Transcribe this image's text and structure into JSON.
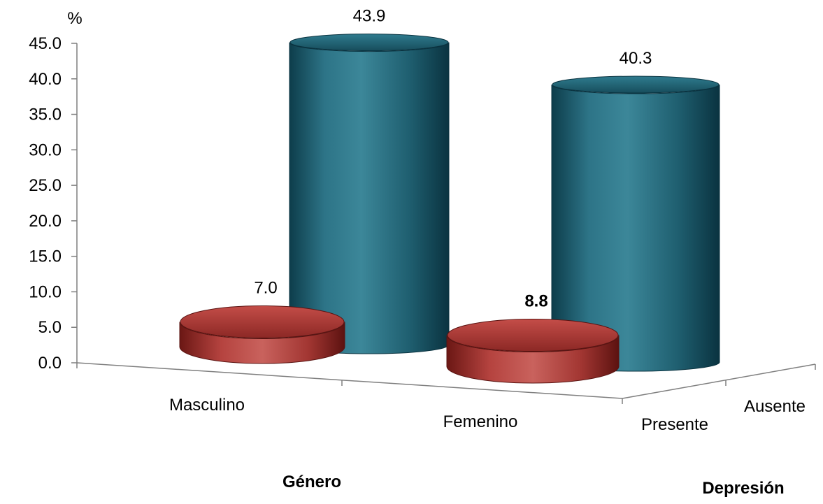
{
  "chart_data": {
    "type": "bar",
    "title": "",
    "ylabel": "%",
    "xlabel": "Género",
    "zlabel": "Depresión",
    "ylim": [
      0,
      45
    ],
    "yticks": [
      "0.0",
      "5.0",
      "10.0",
      "15.0",
      "20.0",
      "25.0",
      "30.0",
      "35.0",
      "40.0",
      "45.0"
    ],
    "categories": [
      "Masculino",
      "Femenino"
    ],
    "series": [
      {
        "name": "Presente",
        "values": [
          7.0,
          8.8
        ],
        "labels": [
          "7.0",
          "8.8"
        ],
        "label_bold": [
          false,
          true
        ],
        "color": "#a8322f"
      },
      {
        "name": "Ausente",
        "values": [
          43.9,
          40.3
        ],
        "labels": [
          "43.9",
          "40.3"
        ],
        "label_bold": [
          false,
          false
        ],
        "color": "#23677a"
      }
    ],
    "grid": false,
    "legend": "none"
  }
}
